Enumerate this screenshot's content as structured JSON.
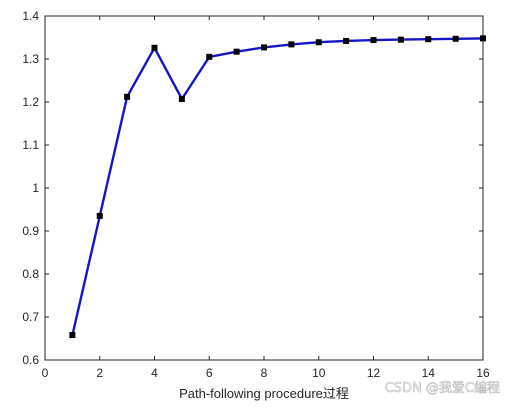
{
  "chart_data": {
    "type": "line",
    "title": "",
    "xlabel": "Path-following procedure过程",
    "ylabel": "",
    "xlim": [
      0,
      16
    ],
    "ylim": [
      0.6,
      1.4
    ],
    "x_ticks": [
      0,
      2,
      4,
      6,
      8,
      10,
      12,
      14,
      16
    ],
    "y_ticks": [
      0.6,
      0.7,
      0.8,
      0.9,
      1,
      1.1,
      1.2,
      1.3,
      1.4
    ],
    "x_tick_labels": [
      "0",
      "2",
      "4",
      "6",
      "8",
      "10",
      "12",
      "14",
      "16"
    ],
    "y_tick_labels": [
      "0.6",
      "0.7",
      "0.8",
      "0.9",
      "1",
      "1.1",
      "1.2",
      "1.3",
      "1.4"
    ],
    "grid": false,
    "series": [
      {
        "x": [
          1,
          2,
          3,
          4,
          5,
          6,
          7,
          8,
          9,
          10,
          11,
          12,
          13,
          14,
          15,
          16
        ],
        "values": [
          0.658,
          0.935,
          1.212,
          1.326,
          1.207,
          1.305,
          1.317,
          1.327,
          1.334,
          1.339,
          1.342,
          1.344,
          1.345,
          1.346,
          1.347,
          1.348
        ],
        "line_color": "#1515c8",
        "marker": "square",
        "marker_color": "#000000"
      }
    ]
  },
  "watermark": "CSDN @我爱C编程"
}
